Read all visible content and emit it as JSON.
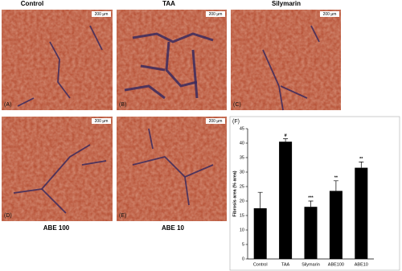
{
  "panels": [
    {
      "label": "(A)",
      "title": "Control",
      "scale_bar": "200 μm"
    },
    {
      "label": "(B)",
      "title": "TAA",
      "scale_bar": "200 μm"
    },
    {
      "label": "(C)",
      "title": "Silymarin",
      "scale_bar": "200 μm"
    },
    {
      "label": "(D)",
      "title": "ABE 100",
      "scale_bar": "200 μm"
    },
    {
      "label": "(E)",
      "title": "ABE 10",
      "scale_bar": "200 μm"
    }
  ],
  "chart_data": {
    "type": "bar",
    "panel_label": "(F)",
    "y_label": "Fibrosis area (% area)",
    "categories": [
      "Control",
      "TAA",
      "Silymarin",
      "ABE100",
      "ABE10"
    ],
    "values": [
      17.5,
      40.5,
      18,
      23.5,
      31.5
    ],
    "errors": [
      5.5,
      1,
      2,
      3.5,
      2
    ],
    "significance": [
      null,
      "#",
      "***",
      "**",
      "**"
    ],
    "color": "#000000",
    "ylim": [
      0,
      45
    ],
    "yticks": [
      0,
      5,
      10,
      15,
      20,
      25,
      30,
      35,
      40,
      45
    ]
  }
}
